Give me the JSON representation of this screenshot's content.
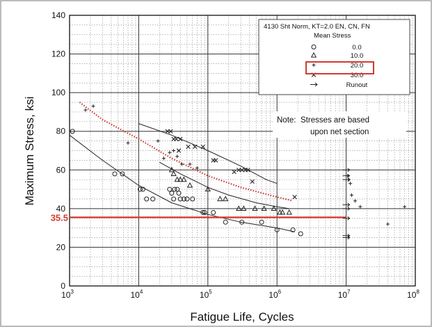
{
  "chart_data": {
    "type": "scatter",
    "xscale": "log",
    "xlim": [
      1000,
      100000000
    ],
    "ylim": [
      0,
      140
    ],
    "xlabel": "Fatigue Life, Cycles",
    "ylabel": "Maximum Stress, ksi",
    "x_ticks": [
      {
        "base": "10",
        "exp": "3",
        "value": 1000
      },
      {
        "base": "10",
        "exp": "4",
        "value": 10000
      },
      {
        "base": "10",
        "exp": "5",
        "value": 100000
      },
      {
        "base": "10",
        "exp": "6",
        "value": 1000000
      },
      {
        "base": "10",
        "exp": "7",
        "value": 10000000
      },
      {
        "base": "10",
        "exp": "8",
        "value": 100000000
      }
    ],
    "y_ticks": [
      "0",
      "20",
      "40",
      "60",
      "80",
      "100",
      "120",
      "140"
    ],
    "grid": true,
    "legend": {
      "title": "4130 Sht Norm, KT=2.0 EN, CN, FN",
      "subtitle": "Mean Stress",
      "placement": "top-right",
      "entries": [
        {
          "symbol": "circle",
          "label": "0.0"
        },
        {
          "symbol": "triangle",
          "label": "10.0"
        },
        {
          "symbol": "plus",
          "label": "20.0",
          "highlighted": true
        },
        {
          "symbol": "x",
          "label": "30.0"
        },
        {
          "symbol": "arrow",
          "label": "Runout"
        }
      ]
    },
    "note": {
      "prefix": "Note:",
      "line1": "Stresses are based",
      "line2": "upon net section"
    },
    "reference_line": {
      "y": 35.5,
      "label": "35.5",
      "color": "#d23b2f",
      "x_end": 10000000
    },
    "series": [
      {
        "name": "0.0",
        "marker": "circle",
        "points": [
          [
            1100,
            80
          ],
          [
            4500,
            58
          ],
          [
            5800,
            58
          ],
          [
            10500,
            50
          ],
          [
            11500,
            50
          ],
          [
            13000,
            45
          ],
          [
            16000,
            45
          ],
          [
            28000,
            50
          ],
          [
            30000,
            48
          ],
          [
            32000,
            45
          ],
          [
            33000,
            50
          ],
          [
            36000,
            50
          ],
          [
            38000,
            48
          ],
          [
            40000,
            45
          ],
          [
            45000,
            45
          ],
          [
            50000,
            45
          ],
          [
            60000,
            45
          ],
          [
            85000,
            38
          ],
          [
            90000,
            38
          ],
          [
            120000,
            38
          ],
          [
            180000,
            33
          ],
          [
            310000,
            33
          ],
          [
            600000,
            33
          ],
          [
            1000000,
            29
          ],
          [
            1700000,
            29
          ],
          [
            2200000,
            27
          ]
        ]
      },
      {
        "name": "10.0",
        "marker": "triangle",
        "points": [
          [
            30000,
            60
          ],
          [
            32000,
            58
          ],
          [
            36000,
            55
          ],
          [
            40000,
            55
          ],
          [
            45000,
            55
          ],
          [
            55000,
            52
          ],
          [
            100000,
            50
          ],
          [
            150000,
            45
          ],
          [
            180000,
            45
          ],
          [
            280000,
            40
          ],
          [
            330000,
            40
          ],
          [
            480000,
            40
          ],
          [
            650000,
            40
          ],
          [
            900000,
            40
          ],
          [
            1100000,
            38
          ],
          [
            1200000,
            38
          ],
          [
            1500000,
            38
          ]
        ]
      },
      {
        "name": "20.0",
        "marker": "plus",
        "points": [
          [
            1700,
            91
          ],
          [
            2200,
            93
          ],
          [
            7000,
            74
          ],
          [
            19000,
            75
          ],
          [
            23000,
            66
          ],
          [
            28000,
            69
          ],
          [
            32000,
            70
          ],
          [
            36000,
            67
          ],
          [
            42000,
            63
          ],
          [
            55000,
            63
          ],
          [
            70000,
            61
          ],
          [
            10500000,
            57
          ],
          [
            11000000,
            55
          ],
          [
            11500000,
            53
          ],
          [
            12000000,
            47
          ],
          [
            13500000,
            44
          ],
          [
            16000000,
            41
          ],
          [
            40000000,
            32
          ],
          [
            70000000,
            41
          ]
        ]
      },
      {
        "name": "30.0",
        "marker": "x",
        "points": [
          [
            26000,
            80
          ],
          [
            29000,
            80
          ],
          [
            32000,
            76
          ],
          [
            35000,
            76
          ],
          [
            40000,
            76
          ],
          [
            38000,
            70
          ],
          [
            52000,
            72
          ],
          [
            65000,
            72
          ],
          [
            85000,
            72
          ],
          [
            120000,
            65
          ],
          [
            130000,
            65
          ],
          [
            240000,
            59
          ],
          [
            280000,
            60
          ],
          [
            310000,
            60
          ],
          [
            350000,
            60
          ],
          [
            380000,
            60
          ],
          [
            440000,
            54
          ],
          [
            1800000,
            46
          ]
        ]
      },
      {
        "name": "Runout",
        "marker": "arrow",
        "points": [
          [
            10000000,
            60
          ],
          [
            10000000,
            57
          ],
          [
            10000000,
            55
          ],
          [
            10000000,
            42
          ],
          [
            10000000,
            40
          ],
          [
            10000000,
            35
          ],
          [
            10000000,
            26
          ],
          [
            10000000,
            25
          ]
        ]
      }
    ],
    "fit_curves": [
      {
        "name": "0.0",
        "points": [
          [
            1000,
            78
          ],
          [
            3000,
            65
          ],
          [
            10000,
            52
          ],
          [
            30000,
            43
          ],
          [
            100000,
            37
          ],
          [
            300000,
            33
          ],
          [
            1000000,
            30
          ],
          [
            1800000,
            28
          ]
        ]
      },
      {
        "name": "10.0",
        "points": [
          [
            20000,
            64
          ],
          [
            40000,
            58
          ],
          [
            100000,
            51
          ],
          [
            200000,
            47
          ],
          [
            500000,
            43
          ],
          [
            1000000,
            41
          ],
          [
            1500000,
            40
          ]
        ]
      },
      {
        "name": "20.0",
        "highlighted": true,
        "points": [
          [
            1400,
            95
          ],
          [
            3000,
            86
          ],
          [
            10000,
            76
          ],
          [
            30000,
            66
          ],
          [
            100000,
            57
          ],
          [
            300000,
            51
          ],
          [
            1000000,
            46
          ],
          [
            1700000,
            44
          ]
        ]
      },
      {
        "name": "30.0",
        "points": [
          [
            10000,
            84
          ],
          [
            30000,
            78
          ],
          [
            100000,
            70
          ],
          [
            300000,
            62
          ],
          [
            700000,
            55
          ],
          [
            1000000,
            53
          ]
        ]
      }
    ]
  }
}
